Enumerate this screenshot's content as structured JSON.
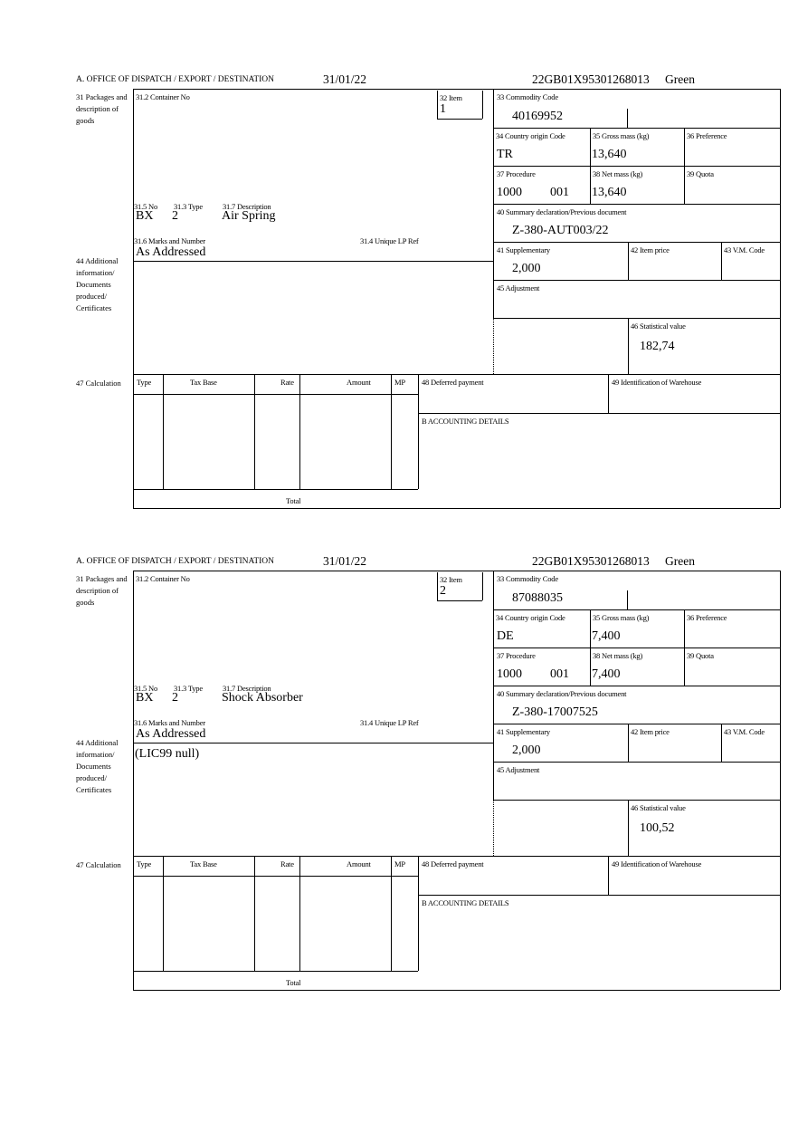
{
  "labels": {
    "office": "A. OFFICE OF DISPATCH / EXPORT / DESTINATION",
    "packages": "31 Packages and description of goods",
    "container_no": "31.2 Container No",
    "item": "32 Item",
    "commodity_code": "33 Commodity Code",
    "country_origin": "34 Country origin Code",
    "gross_mass": "35 Gross mass (kg)",
    "preference": "36 Preference",
    "procedure": "37 Procedure",
    "net_mass": "38 Net mass (kg)",
    "quota": "39 Quota",
    "summary_decl": "40 Summary declaration/Previous document",
    "supplementary": "41 Supplementary",
    "item_price": "42 Item price",
    "vm_code": "43 V.M. Code",
    "adjustment": "45 Adjustment",
    "statistical_value": "46 Statistical value",
    "no": "31.5 No",
    "type": "31.3 Type",
    "description": "31.7 Description",
    "marks": "31.6 Marks and Number",
    "unique_lp": "31.4 Unique LP Ref",
    "additional": "44 Additional information/ Documents produced/ Certificates",
    "calculation": "47 Calculation",
    "col_type": "Type",
    "col_tax_base": "Tax Base",
    "col_rate": "Rate",
    "col_amount": "Amount",
    "col_mp": "MP",
    "deferred": "48 Deferred payment",
    "warehouse": "49 Identification of Warehouse",
    "accounting": "B ACCOUNTING DETAILS",
    "total": "Total"
  },
  "items": [
    {
      "date": "31/01/22",
      "reference": "22GB01X95301268013",
      "route": "Green",
      "item_no": "1",
      "commodity_code": "40169952",
      "country_origin": "TR",
      "gross_mass": "13,640",
      "procedure": "1000",
      "procedure_suffix": "001",
      "net_mass": "13,640",
      "summary_decl": "Z-380-AUT003/22",
      "supplementary": "2,000",
      "statistical_value": "182,74",
      "pkg_no": "BX",
      "pkg_type": "2",
      "description": "Air Spring",
      "marks": "As Addressed",
      "additional_info": ""
    },
    {
      "date": "31/01/22",
      "reference": "22GB01X95301268013",
      "route": "Green",
      "item_no": "2",
      "commodity_code": "87088035",
      "country_origin": "DE",
      "gross_mass": "7,400",
      "procedure": "1000",
      "procedure_suffix": "001",
      "net_mass": "7,400",
      "summary_decl": "Z-380-17007525",
      "supplementary": "2,000",
      "statistical_value": "100,52",
      "pkg_no": "BX",
      "pkg_type": "2",
      "description": "Shock Absorber",
      "marks": "As Addressed",
      "additional_info": "(LIC99 null)"
    }
  ]
}
